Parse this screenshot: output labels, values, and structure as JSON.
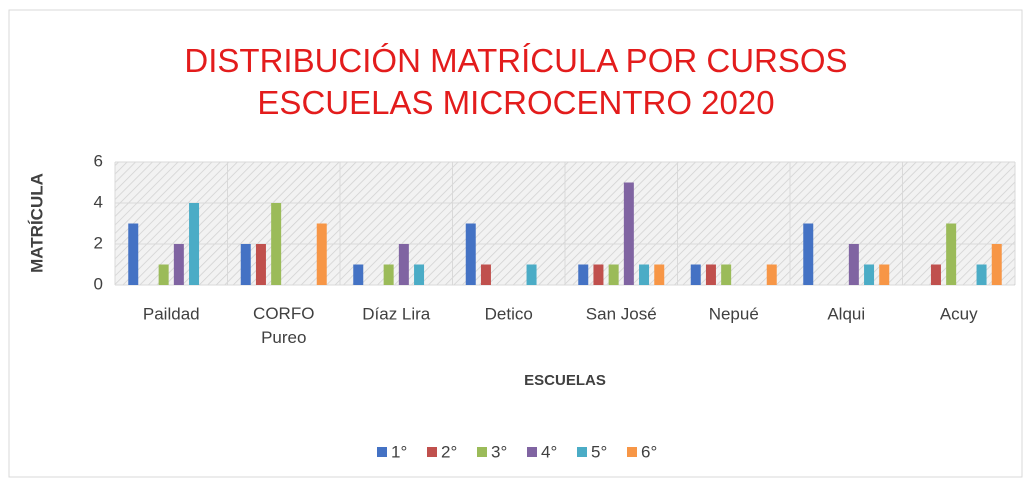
{
  "chart_data": {
    "type": "bar",
    "title": "DISTRIBUCIÓN MATRÍCULA POR CURSOS\nESCUELAS MICROCENTRO 2020",
    "xlabel": "ESCUELAS",
    "ylabel": "MATRÍCULA",
    "categories": [
      "Paildad",
      "CORFO\nPureo",
      "Díaz Lira",
      "Detico",
      "San José",
      "Nepué",
      "Alqui",
      "Acuy"
    ],
    "series": [
      {
        "name": "1°",
        "color": "#4472c4",
        "values": [
          3,
          2,
          1,
          3,
          1,
          1,
          3,
          0
        ]
      },
      {
        "name": "2°",
        "color": "#c0504d",
        "values": [
          0,
          2,
          0,
          1,
          1,
          1,
          0,
          1
        ]
      },
      {
        "name": "3°",
        "color": "#9bbb59",
        "values": [
          1,
          4,
          1,
          0,
          1,
          1,
          0,
          3
        ]
      },
      {
        "name": "4°",
        "color": "#8064a2",
        "values": [
          2,
          0,
          2,
          0,
          5,
          0,
          2,
          0
        ]
      },
      {
        "name": "5°",
        "color": "#4bacc6",
        "values": [
          4,
          0,
          1,
          1,
          1,
          0,
          1,
          1
        ]
      },
      {
        "name": "6°",
        "color": "#f79646",
        "values": [
          0,
          3,
          0,
          0,
          1,
          1,
          1,
          2
        ]
      }
    ],
    "ylim": [
      0,
      6
    ],
    "yticks": [
      0,
      2,
      4,
      6
    ],
    "grid": true,
    "legend": "bottom"
  }
}
